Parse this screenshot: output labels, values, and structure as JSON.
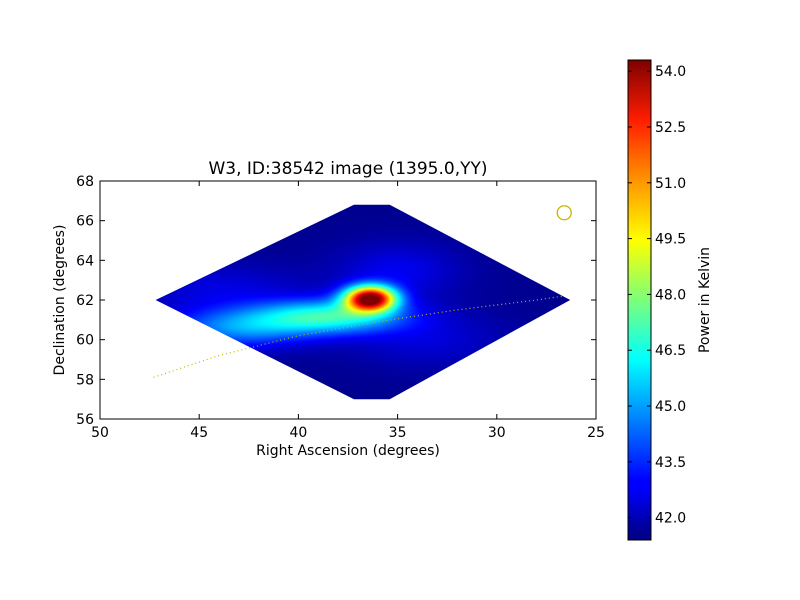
{
  "chart_data": {
    "type": "heatmap",
    "title": "W3, ID:38542 image (1395.0,YY)",
    "xlabel": "Right Ascension (degrees)",
    "ylabel": "Declination (degrees)",
    "xlim": [
      50,
      25
    ],
    "ylim": [
      56,
      68
    ],
    "xticks": [
      "50",
      "45",
      "40",
      "35",
      "30",
      "25"
    ],
    "yticks": [
      "56",
      "58",
      "60",
      "62",
      "64",
      "66",
      "68"
    ],
    "colorbar": {
      "label": "Power in Kelvin",
      "range": [
        41.4,
        54.3
      ],
      "ticks": [
        "42.0",
        "43.5",
        "45.0",
        "46.5",
        "48.0",
        "49.5",
        "51.0",
        "52.5",
        "54.0"
      ],
      "colormap": "jet"
    },
    "map_footprint": [
      [
        47.2,
        62.0
      ],
      [
        37.2,
        66.8
      ],
      [
        35.4,
        66.8
      ],
      [
        26.3,
        62.0
      ],
      [
        35.4,
        57.0
      ],
      [
        37.2,
        57.0
      ]
    ],
    "background_level": 41.6,
    "sources": [
      {
        "ra": 36.4,
        "dec": 62.1,
        "peak": 54.2
      },
      {
        "ra": 38.5,
        "dec": 61.2,
        "peak": 46.5
      },
      {
        "ra": 43.0,
        "dec": 60.6,
        "peak": 44.6
      },
      {
        "ra": 35.0,
        "dec": 63.5,
        "peak": 42.8
      },
      {
        "ra": 44.0,
        "dec": 62.6,
        "peak": 42.6
      },
      {
        "ra": 33.5,
        "dec": 60.0,
        "peak": 42.5
      }
    ],
    "galactic_plane": [
      [
        47.3,
        58.1
      ],
      [
        44.0,
        59.2
      ],
      [
        40.0,
        60.2
      ],
      [
        36.0,
        60.9
      ],
      [
        32.0,
        61.5
      ],
      [
        28.0,
        62.0
      ],
      [
        26.6,
        62.2
      ]
    ],
    "beam_marker": {
      "ra": 26.6,
      "dec": 66.4
    },
    "colors": {
      "plane": "#c8b400",
      "beam": "#c8b400",
      "frame": "#000000"
    }
  }
}
